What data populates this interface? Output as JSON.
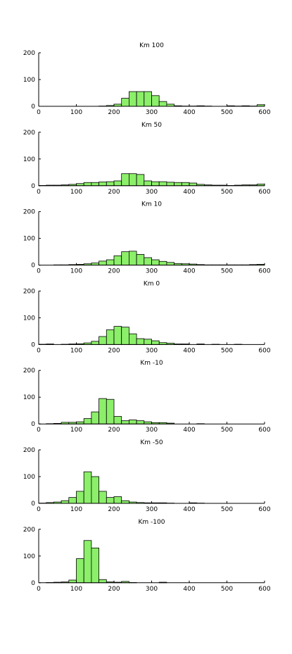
{
  "chart_data": [
    {
      "type": "bar",
      "title": "Km 100",
      "xlim": [
        0,
        600
      ],
      "ylim": [
        0,
        200
      ],
      "xticks": [
        0,
        100,
        200,
        300,
        400,
        500,
        600
      ],
      "yticks": [
        0,
        100,
        200
      ],
      "bin_width": 20,
      "bar_color": "#8cef6a",
      "x": [
        10,
        30,
        50,
        70,
        90,
        110,
        130,
        150,
        170,
        190,
        210,
        230,
        250,
        270,
        290,
        310,
        330,
        350,
        370,
        390,
        410,
        430,
        450,
        470,
        490,
        510,
        530,
        550,
        570,
        590
      ],
      "values": [
        0,
        0,
        0,
        0,
        0,
        0,
        0,
        0,
        1,
        3,
        8,
        30,
        55,
        55,
        55,
        40,
        18,
        8,
        2,
        1,
        1,
        2,
        1,
        0,
        0,
        2,
        1,
        2,
        1,
        6
      ]
    },
    {
      "type": "bar",
      "title": "Km 50",
      "xlim": [
        0,
        600
      ],
      "ylim": [
        0,
        200
      ],
      "xticks": [
        0,
        100,
        200,
        300,
        400,
        500,
        600
      ],
      "yticks": [
        0,
        100,
        200
      ],
      "bin_width": 20,
      "bar_color": "#8cef6a",
      "x": [
        10,
        30,
        50,
        70,
        90,
        110,
        130,
        150,
        170,
        190,
        210,
        230,
        250,
        270,
        290,
        310,
        330,
        350,
        370,
        390,
        410,
        430,
        450,
        470,
        490,
        510,
        530,
        550,
        570,
        590
      ],
      "values": [
        1,
        2,
        2,
        3,
        5,
        8,
        12,
        12,
        14,
        15,
        18,
        45,
        45,
        42,
        18,
        15,
        15,
        13,
        12,
        12,
        10,
        5,
        3,
        2,
        2,
        1,
        2,
        3,
        3,
        6
      ]
    },
    {
      "type": "bar",
      "title": "Km 10",
      "xlim": [
        0,
        600
      ],
      "ylim": [
        0,
        200
      ],
      "xticks": [
        0,
        100,
        200,
        300,
        400,
        500,
        600
      ],
      "yticks": [
        0,
        100,
        200
      ],
      "bin_width": 20,
      "bar_color": "#8cef6a",
      "x": [
        10,
        30,
        50,
        70,
        90,
        110,
        130,
        150,
        170,
        190,
        210,
        230,
        250,
        270,
        290,
        310,
        330,
        350,
        370,
        390,
        410,
        430,
        450,
        470,
        490,
        510,
        530,
        550,
        570,
        590
      ],
      "values": [
        0,
        0,
        1,
        1,
        2,
        3,
        5,
        8,
        15,
        20,
        35,
        50,
        52,
        40,
        28,
        20,
        14,
        10,
        6,
        5,
        4,
        2,
        1,
        1,
        1,
        1,
        1,
        1,
        2,
        3
      ]
    },
    {
      "type": "bar",
      "title": "Km 0",
      "xlim": [
        0,
        600
      ],
      "ylim": [
        0,
        200
      ],
      "xticks": [
        0,
        100,
        200,
        300,
        400,
        500,
        600
      ],
      "yticks": [
        0,
        100,
        200
      ],
      "bin_width": 20,
      "bar_color": "#8cef6a",
      "x": [
        10,
        30,
        50,
        70,
        90,
        110,
        130,
        150,
        170,
        190,
        210,
        230,
        250,
        270,
        290,
        310,
        330,
        350,
        370,
        390,
        410,
        430,
        450,
        470,
        490,
        510,
        530,
        550,
        570,
        590
      ],
      "values": [
        1,
        2,
        0,
        1,
        2,
        3,
        6,
        12,
        30,
        55,
        68,
        65,
        40,
        22,
        20,
        14,
        7,
        5,
        2,
        2,
        0,
        2,
        0,
        1,
        0,
        0,
        1,
        0,
        0,
        0
      ]
    },
    {
      "type": "bar",
      "title": "Km -10",
      "xlim": [
        0,
        600
      ],
      "ylim": [
        0,
        200
      ],
      "xticks": [
        0,
        100,
        200,
        300,
        400,
        500,
        600
      ],
      "yticks": [
        0,
        100,
        200
      ],
      "bin_width": 20,
      "bar_color": "#8cef6a",
      "x": [
        10,
        30,
        50,
        70,
        90,
        110,
        130,
        150,
        170,
        190,
        210,
        230,
        250,
        270,
        290,
        310,
        330,
        350,
        370,
        390,
        410,
        430,
        450,
        470,
        490,
        510,
        530,
        550,
        570,
        590
      ],
      "values": [
        0,
        1,
        2,
        6,
        6,
        8,
        20,
        45,
        95,
        92,
        28,
        12,
        15,
        12,
        8,
        5,
        5,
        3,
        0,
        0,
        0,
        1,
        0,
        0,
        0,
        0,
        0,
        0,
        0,
        0
      ]
    },
    {
      "type": "bar",
      "title": "Km -50",
      "xlim": [
        0,
        600
      ],
      "ylim": [
        0,
        200
      ],
      "xticks": [
        0,
        100,
        200,
        300,
        400,
        500,
        600
      ],
      "yticks": [
        0,
        100,
        200
      ],
      "bin_width": 20,
      "bar_color": "#8cef6a",
      "x": [
        10,
        30,
        50,
        70,
        90,
        110,
        130,
        150,
        170,
        190,
        210,
        230,
        250,
        270,
        290,
        310,
        330,
        350,
        370,
        390,
        410,
        430,
        450,
        470,
        490,
        510,
        530,
        550,
        570,
        590
      ],
      "values": [
        1,
        3,
        5,
        10,
        22,
        45,
        118,
        100,
        45,
        22,
        25,
        10,
        5,
        3,
        2,
        2,
        2,
        1,
        0,
        0,
        2,
        1,
        0,
        0,
        0,
        0,
        0,
        0,
        0,
        0
      ]
    },
    {
      "type": "bar",
      "title": "Km -100",
      "xlim": [
        0,
        600
      ],
      "ylim": [
        0,
        200
      ],
      "xticks": [
        0,
        100,
        200,
        300,
        400,
        500,
        600
      ],
      "yticks": [
        0,
        100,
        200
      ],
      "bin_width": 20,
      "bar_color": "#8cef6a",
      "x": [
        10,
        30,
        50,
        70,
        90,
        110,
        130,
        150,
        170,
        190,
        210,
        230,
        250,
        270,
        290,
        310,
        330,
        350,
        370,
        390,
        410,
        430,
        450,
        470,
        490,
        510,
        530,
        550,
        570,
        590
      ],
      "values": [
        0,
        1,
        2,
        3,
        10,
        90,
        158,
        130,
        12,
        3,
        2,
        5,
        1,
        0,
        0,
        0,
        2,
        0,
        0,
        0,
        0,
        0,
        0,
        0,
        0,
        0,
        0,
        0,
        0,
        0
      ]
    }
  ]
}
